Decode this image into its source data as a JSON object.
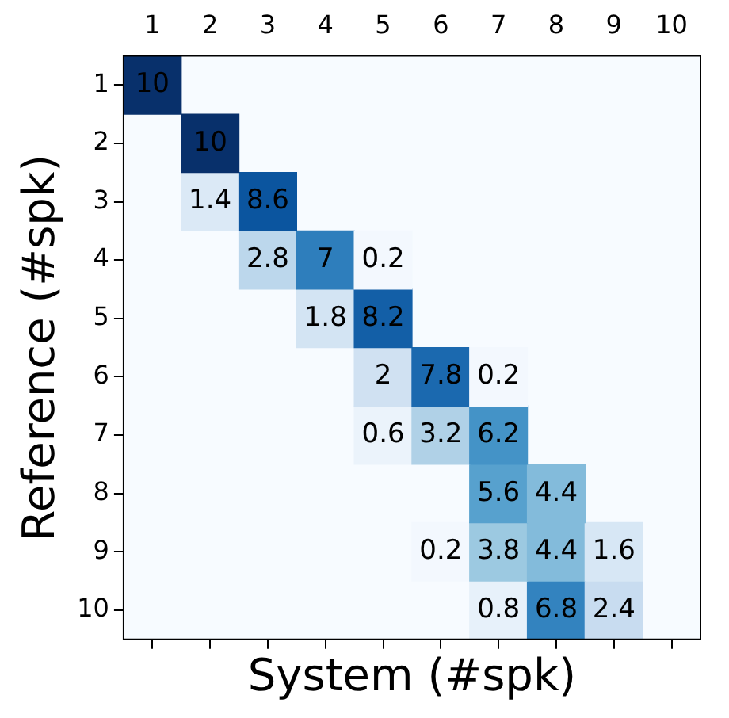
{
  "chart_data": {
    "type": "heatmap",
    "xlabel": "System (#spk)",
    "ylabel": "Reference (#spk)",
    "categories": [
      "1",
      "2",
      "3",
      "4",
      "5",
      "6",
      "7",
      "8",
      "9",
      "10"
    ],
    "y_categories": [
      "1",
      "2",
      "3",
      "4",
      "5",
      "6",
      "7",
      "8",
      "9",
      "10"
    ],
    "cells": [
      [
        10,
        null,
        null,
        null,
        null,
        null,
        null,
        null,
        null,
        null
      ],
      [
        null,
        10,
        null,
        null,
        null,
        null,
        null,
        null,
        null,
        null
      ],
      [
        null,
        1.4,
        8.6,
        null,
        null,
        null,
        null,
        null,
        null,
        null
      ],
      [
        null,
        null,
        2.8,
        7,
        0.2,
        null,
        null,
        null,
        null,
        null
      ],
      [
        null,
        null,
        null,
        1.8,
        8.2,
        null,
        null,
        null,
        null,
        null
      ],
      [
        null,
        null,
        null,
        null,
        2,
        7.8,
        0.2,
        null,
        null,
        null
      ],
      [
        null,
        null,
        null,
        null,
        0.6,
        3.2,
        6.2,
        null,
        null,
        null
      ],
      [
        null,
        null,
        null,
        null,
        null,
        null,
        5.6,
        4.4,
        null,
        null
      ],
      [
        null,
        null,
        null,
        null,
        null,
        0.2,
        3.8,
        4.4,
        1.6,
        null
      ],
      [
        null,
        null,
        null,
        null,
        null,
        null,
        0.8,
        6.8,
        2.4,
        null
      ]
    ],
    "data_labels": true,
    "grid": false,
    "legend": false
  }
}
